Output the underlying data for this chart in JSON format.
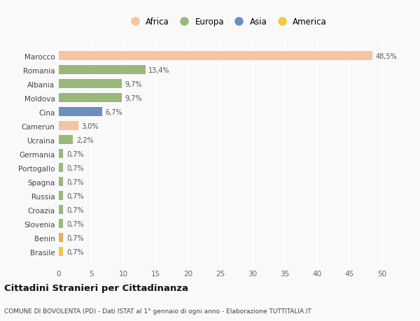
{
  "categories": [
    "Brasile",
    "Benin",
    "Slovenia",
    "Croazia",
    "Russia",
    "Spagna",
    "Portogallo",
    "Germania",
    "Ucraina",
    "Camerun",
    "Cina",
    "Moldova",
    "Albania",
    "Romania",
    "Marocco"
  ],
  "values": [
    0.7,
    0.7,
    0.7,
    0.7,
    0.7,
    0.7,
    0.7,
    0.7,
    2.2,
    3.0,
    6.7,
    9.7,
    9.7,
    13.4,
    48.5
  ],
  "labels": [
    "0,7%",
    "0,7%",
    "0,7%",
    "0,7%",
    "0,7%",
    "0,7%",
    "0,7%",
    "0,7%",
    "2,2%",
    "3,0%",
    "6,7%",
    "9,7%",
    "9,7%",
    "13,4%",
    "48,5%"
  ],
  "colors": [
    "#F5C842",
    "#F5A855",
    "#9AB87A",
    "#9AB87A",
    "#9AB87A",
    "#9AB87A",
    "#9AB87A",
    "#9AB87A",
    "#9AB87A",
    "#F5C4A0",
    "#6B8FBF",
    "#9AB87A",
    "#9AB87A",
    "#9AB87A",
    "#F5C4A0"
  ],
  "legend_labels": [
    "Africa",
    "Europa",
    "Asia",
    "America"
  ],
  "legend_colors": [
    "#F5C4A0",
    "#9AB87A",
    "#6B8FBF",
    "#F5C842"
  ],
  "xlim": [
    0,
    52
  ],
  "xticks": [
    0,
    5,
    10,
    15,
    20,
    25,
    30,
    35,
    40,
    45,
    50
  ],
  "title": "Cittadini Stranieri per Cittadinanza",
  "subtitle": "COMUNE DI BOVOLENTA (PD) - Dati ISTAT al 1° gennaio di ogni anno - Elaborazione TUTTITALIA.IT",
  "background_color": "#f9f9f9",
  "grid_color": "#ffffff",
  "bar_height": 0.65
}
